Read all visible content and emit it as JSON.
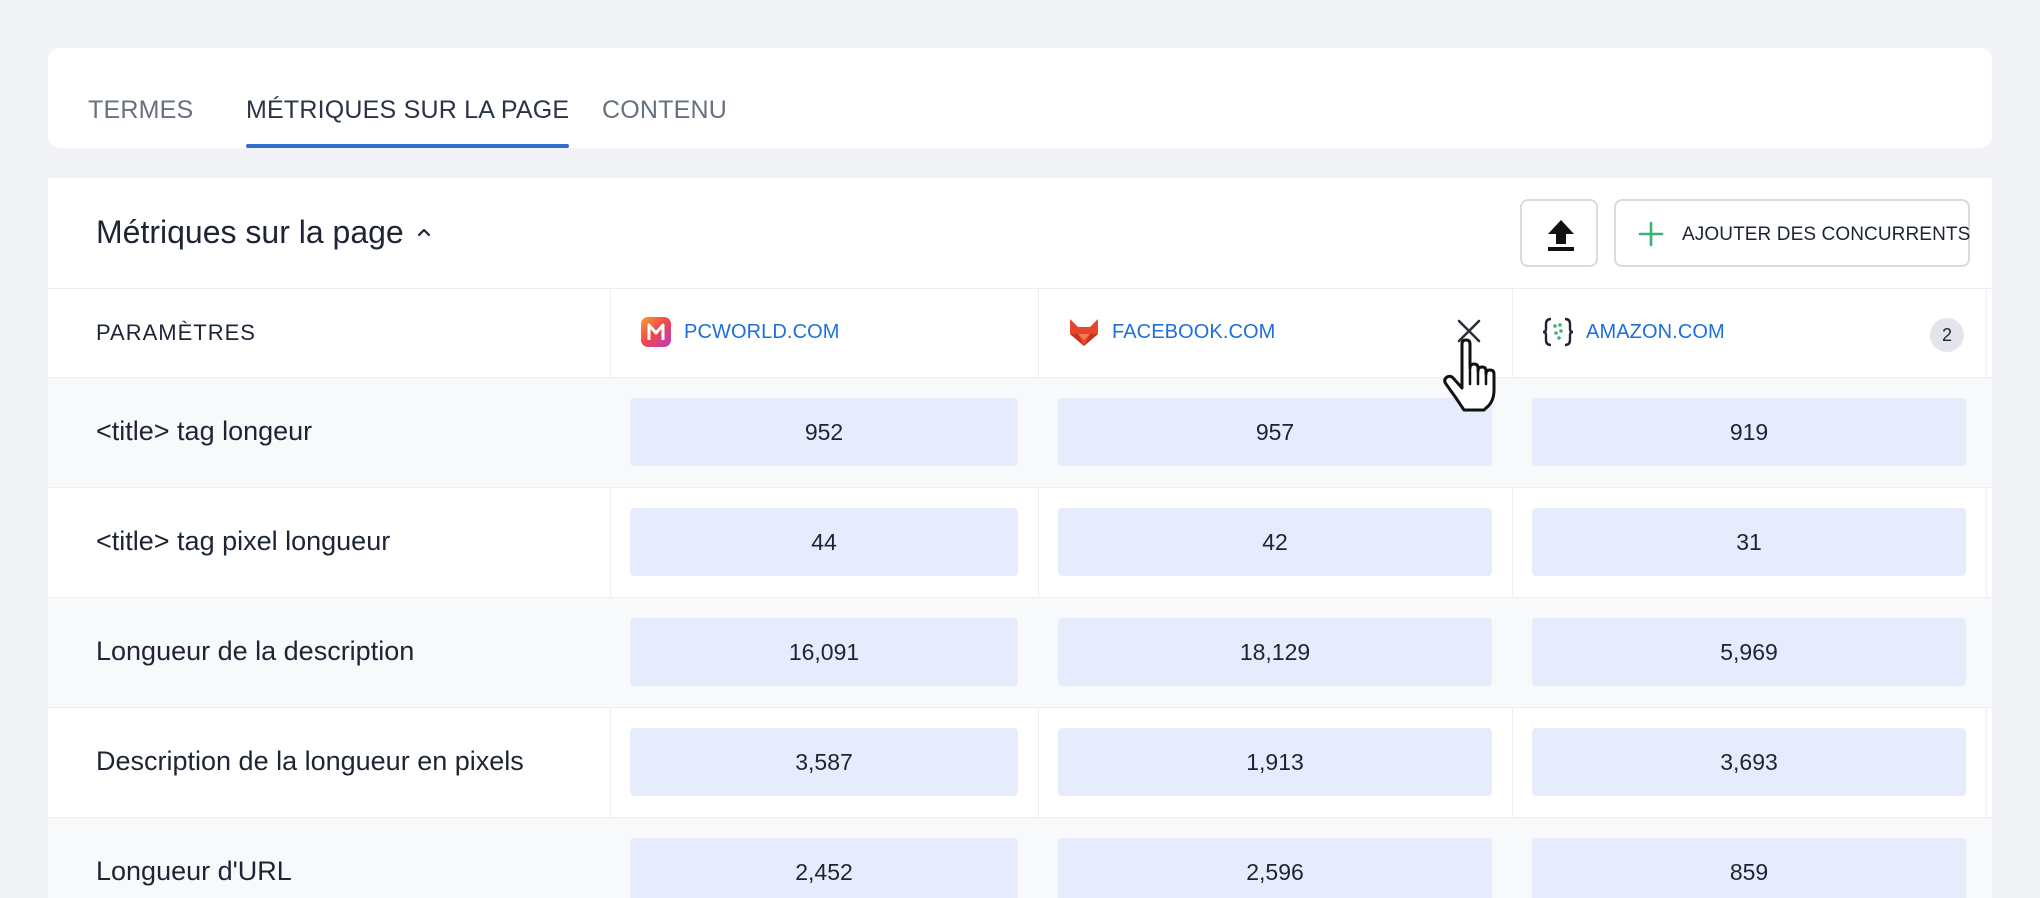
{
  "tabs": [
    {
      "label": "TERMES",
      "active": false
    },
    {
      "label": "MÉTRIQUES SUR LA PAGE",
      "active": true
    },
    {
      "label": "CONTENU",
      "active": false
    }
  ],
  "section": {
    "title": "Métriques sur la page",
    "upload_icon": "upload-icon",
    "add_label": "AJOUTER DES CONCURRENTS",
    "add_icon": "plus-icon"
  },
  "table": {
    "param_header": "PARAMÈTRES",
    "sites": [
      {
        "name": "PCWORLD.COM",
        "logo": "pcworld-logo",
        "logo_color": "#f0454b"
      },
      {
        "name": "FACEBOOK.COM",
        "logo": "facebook-fox-logo",
        "logo_color": "#e8462c"
      },
      {
        "name": "AMAZON.COM",
        "logo": "amazon-braces-logo",
        "logo_color": "#1d2433",
        "badge": "2"
      }
    ],
    "rows": [
      {
        "label": "<title> tag longeur",
        "values": [
          "952",
          "957",
          "919"
        ]
      },
      {
        "label": "<title> tag pixel longueur",
        "values": [
          "44",
          "42",
          "31"
        ]
      },
      {
        "label": "Longueur de la description",
        "values": [
          "16,091",
          "18,129",
          "5,969"
        ]
      },
      {
        "label": "Description de la longueur en pixels",
        "values": [
          "3,587",
          "1,913",
          "3,693"
        ]
      },
      {
        "label": "Longueur d'URL",
        "values": [
          "2,452",
          "2,596",
          "859"
        ]
      }
    ]
  },
  "colors": {
    "accent": "#2f6fce",
    "link": "#1e6fd9",
    "cell_bg": "#e6ecfc",
    "plus_green": "#3bb273"
  }
}
